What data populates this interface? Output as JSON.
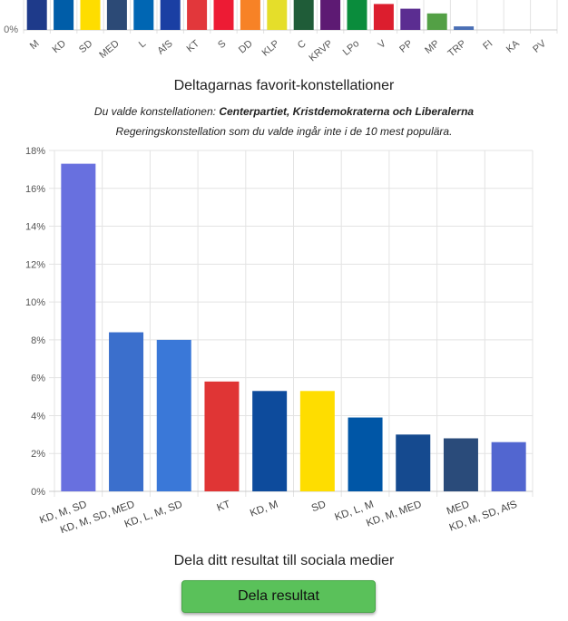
{
  "top_chart": {
    "zero_label": "0%",
    "ylim": [
      0,
      100
    ],
    "categories": [
      "M",
      "KD",
      "SD",
      "MED",
      "L",
      "AfS",
      "KT",
      "S",
      "DD",
      "KLP",
      "C",
      "KRVP",
      "LPo",
      "V",
      "PP",
      "MP",
      "TRP",
      "FI",
      "KA",
      "PV"
    ],
    "values": [
      100,
      100,
      100,
      100,
      100,
      100,
      100,
      72,
      62,
      50,
      40,
      36,
      26,
      22,
      18,
      14,
      3,
      0,
      0,
      0
    ],
    "colors": [
      "#1e3a8a",
      "#005da8",
      "#fedd00",
      "#2c4a76",
      "#0066b3",
      "#1a3fa3",
      "#e2373b",
      "#ed1b34",
      "#f78226",
      "#e5de2a",
      "#1f5c38",
      "#5d1a73",
      "#0a8c3c",
      "#dc1e2e",
      "#5b2d91",
      "#53a045",
      "#4a6fb5",
      "#cccccc",
      "#cccccc",
      "#cccccc"
    ]
  },
  "chart_title": "Deltagarnas favorit-konstellationer",
  "subtitle_prefix": "Du valde konstellationen: ",
  "subtitle_choice": "Centerpartiet, Kristdemokraterna och Liberalerna",
  "subtitle_note": "Regeringskonstellation som du valde ingår inte i de 10 mest populära.",
  "chart_data": {
    "type": "bar",
    "categories": [
      "KD, M, SD",
      "KD, M, SD, MED",
      "KD, L, M, SD",
      "KT",
      "KD, M",
      "SD",
      "KD, L, M",
      "KD, M, MED",
      "MED",
      "KD, M, SD, AfS"
    ],
    "values": [
      17.3,
      8.4,
      8.0,
      5.8,
      5.3,
      5.3,
      3.9,
      3.0,
      2.8,
      2.6
    ],
    "colors": [
      "#6870df",
      "#3b6fcc",
      "#3a78d8",
      "#e03535",
      "#0d4b9c",
      "#fedd00",
      "#0056a6",
      "#154a8f",
      "#2a4b7a",
      "#5266d0"
    ],
    "ylim": [
      0,
      18
    ],
    "yticks": [
      0,
      2,
      4,
      6,
      8,
      10,
      12,
      14,
      16,
      18
    ],
    "ytick_labels": [
      "0%",
      "2%",
      "4%",
      "6%",
      "8%",
      "10%",
      "12%",
      "14%",
      "16%",
      "18%"
    ],
    "grid": true
  },
  "share_heading": "Dela ditt resultat till sociala medier",
  "share_button": "Dela resultat"
}
